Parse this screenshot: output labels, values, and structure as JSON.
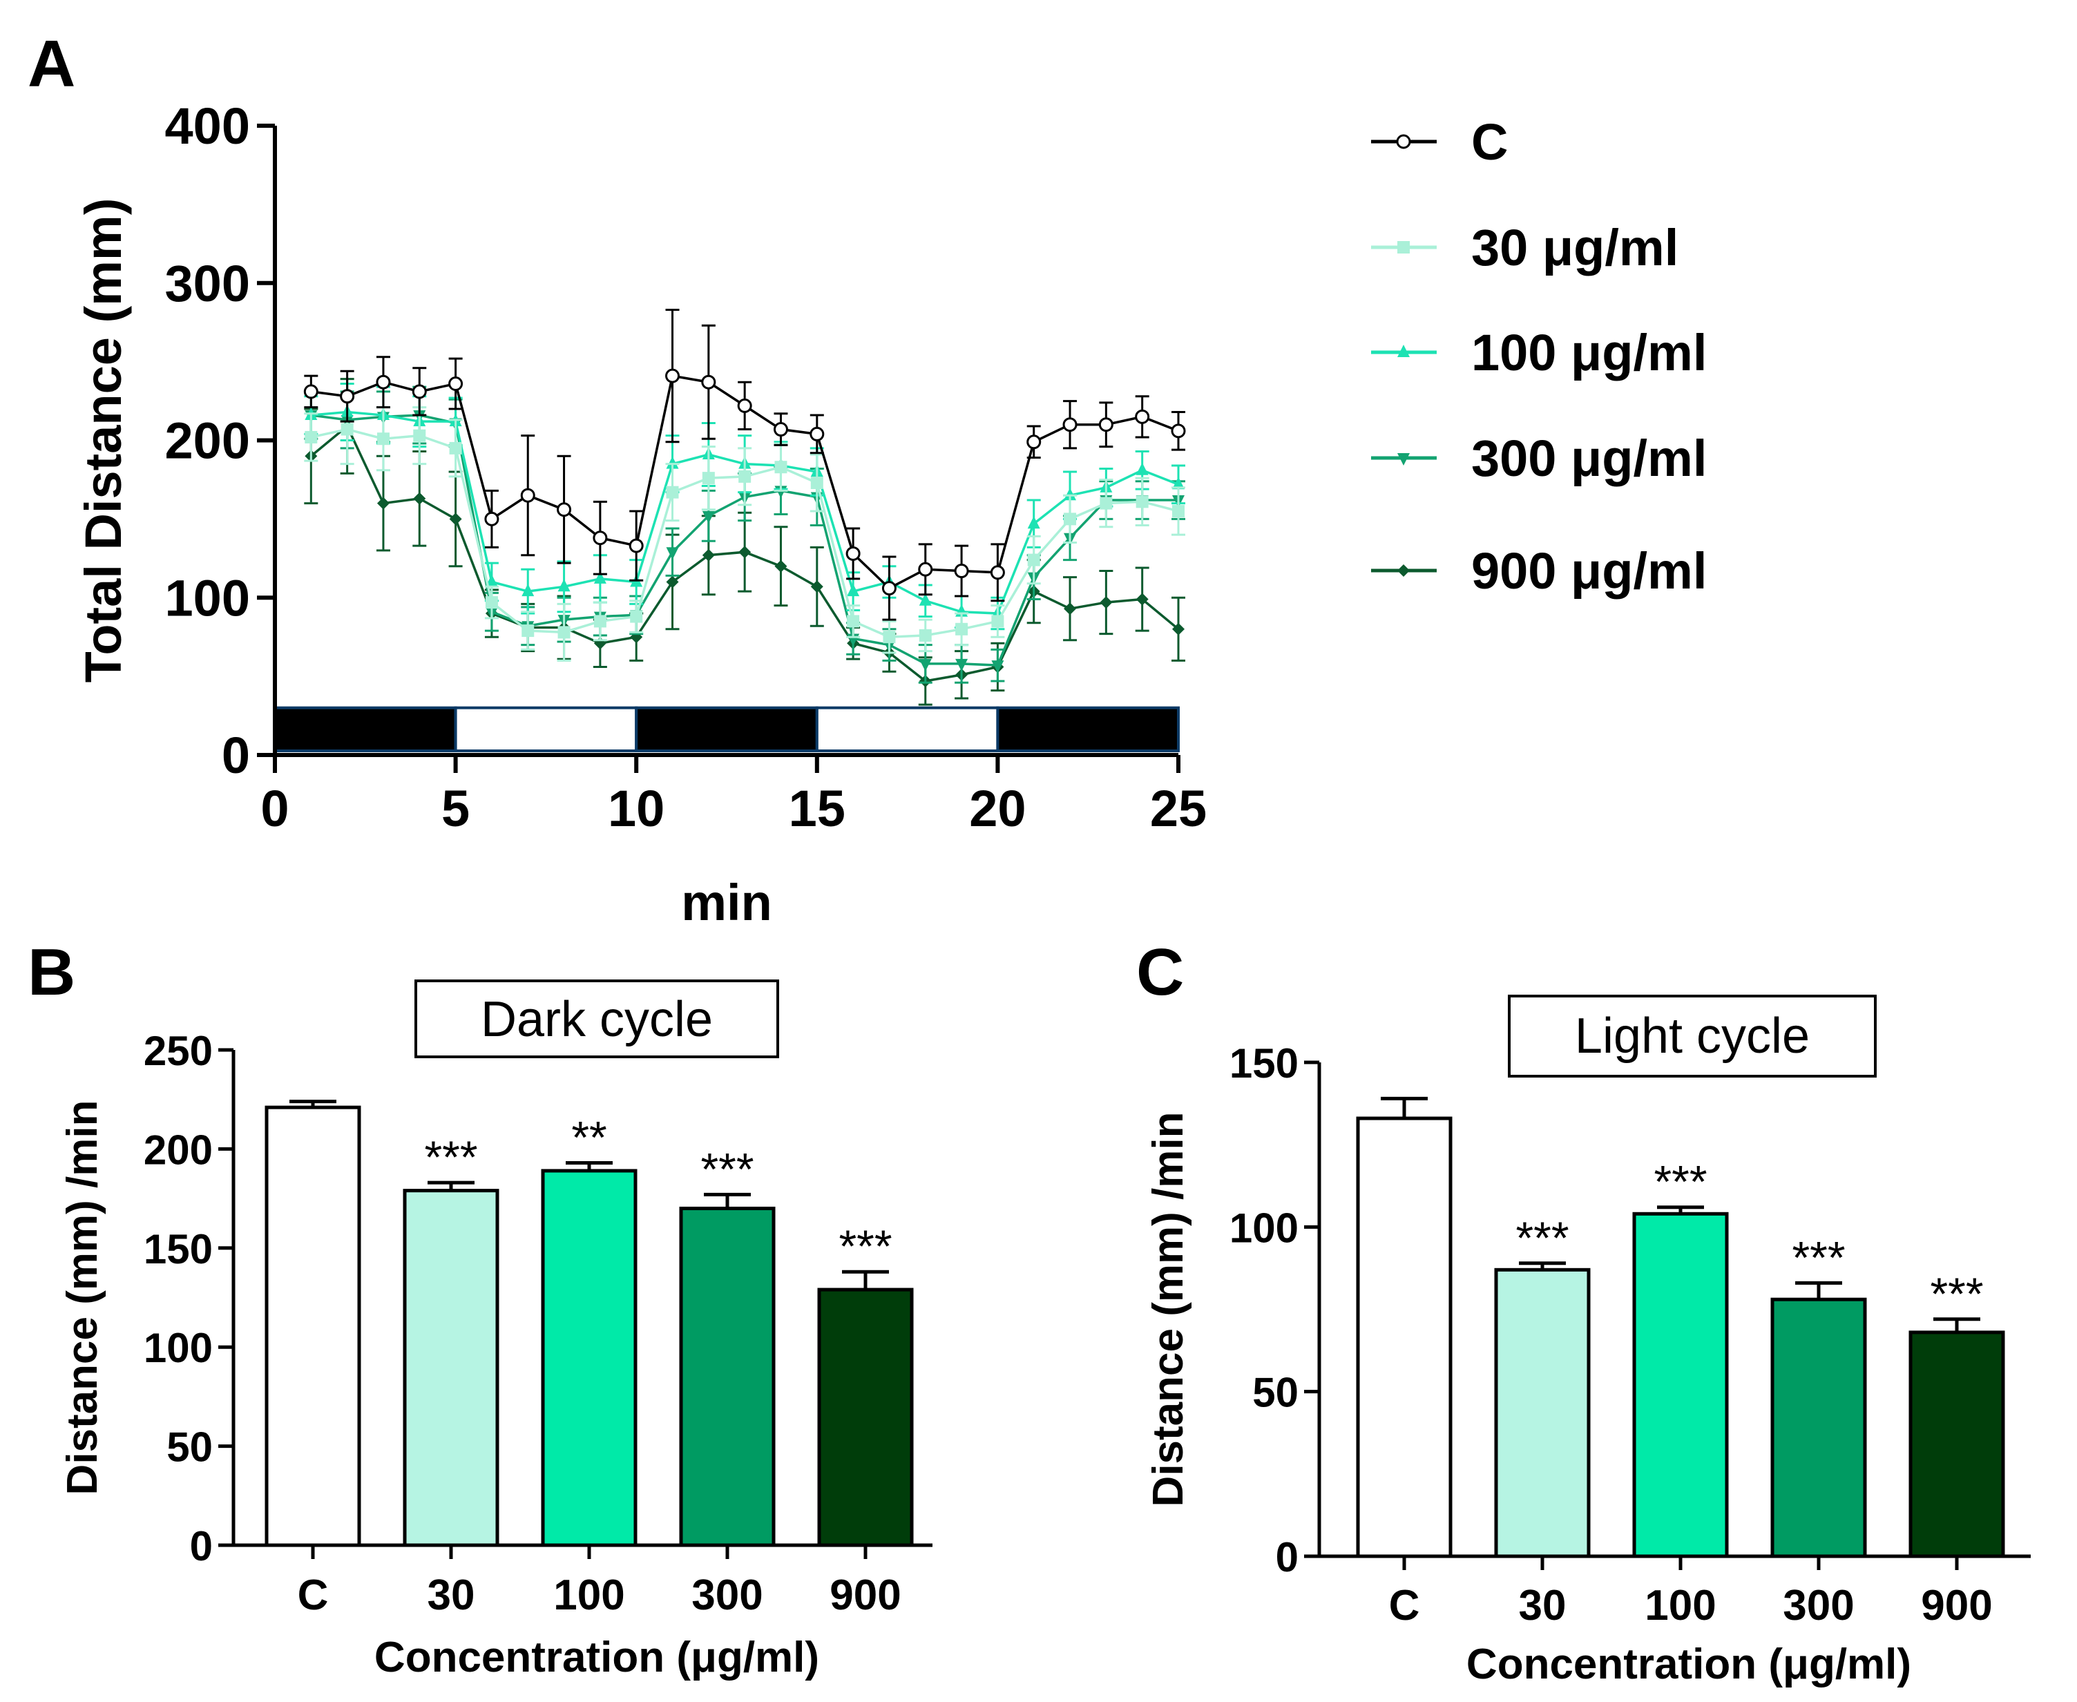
{
  "panels": {
    "a": "A",
    "b": "B",
    "c": "C"
  },
  "chart_data": [
    {
      "id": "A",
      "type": "line",
      "xlabel": "min",
      "ylabel": "Total Distance (mm)",
      "xlim": [
        0,
        25
      ],
      "ylim": [
        0,
        400
      ],
      "xticks": [
        "0",
        "5",
        "10",
        "15",
        "20",
        "25"
      ],
      "yticks": [
        "0",
        "100",
        "200",
        "300",
        "400"
      ],
      "light_dark_bar": [
        {
          "from": 0,
          "to": 5,
          "phase": "dark"
        },
        {
          "from": 5,
          "to": 10,
          "phase": "light"
        },
        {
          "from": 10,
          "to": 15,
          "phase": "dark"
        },
        {
          "from": 15,
          "to": 20,
          "phase": "light"
        },
        {
          "from": 20,
          "to": 25,
          "phase": "dark"
        }
      ],
      "x": [
        1,
        2,
        3,
        4,
        5,
        6,
        7,
        8,
        9,
        10,
        11,
        12,
        13,
        14,
        15,
        16,
        17,
        18,
        19,
        20,
        21,
        22,
        23,
        24,
        25
      ],
      "series": [
        {
          "name": "C",
          "color": "#000000",
          "marker": "circle-open",
          "values": [
            231,
            228,
            237,
            231,
            236,
            150,
            165,
            156,
            138,
            133,
            241,
            237,
            222,
            207,
            204,
            128,
            106,
            118,
            117,
            116,
            199,
            210,
            210,
            215,
            206
          ],
          "errors": [
            10,
            16,
            16,
            15,
            16,
            18,
            38,
            34,
            23,
            22,
            42,
            36,
            15,
            10,
            12,
            16,
            20,
            16,
            16,
            18,
            10,
            15,
            14,
            13,
            12
          ]
        },
        {
          "name": "30 μg/ml",
          "color": "#aaf0d8",
          "marker": "square",
          "values": [
            202,
            207,
            201,
            203,
            195,
            97,
            79,
            78,
            85,
            88,
            167,
            176,
            177,
            183,
            173,
            85,
            75,
            76,
            80,
            85,
            124,
            150,
            160,
            161,
            155
          ],
          "errors": [
            15,
            22,
            20,
            18,
            18,
            10,
            12,
            18,
            12,
            10,
            18,
            20,
            18,
            15,
            18,
            10,
            10,
            10,
            10,
            10,
            15,
            15,
            15,
            15,
            15
          ]
        },
        {
          "name": "100 μg/ml",
          "color": "#1de2b3",
          "marker": "triangle-up",
          "values": [
            216,
            218,
            216,
            212,
            212,
            110,
            104,
            107,
            112,
            110,
            185,
            191,
            185,
            184,
            180,
            104,
            110,
            98,
            91,
            90,
            147,
            165,
            170,
            181,
            172
          ],
          "errors": [
            12,
            18,
            18,
            16,
            15,
            12,
            14,
            16,
            15,
            14,
            18,
            20,
            18,
            15,
            15,
            12,
            10,
            10,
            10,
            10,
            15,
            15,
            12,
            12,
            12
          ]
        },
        {
          "name": "300 μg/ml",
          "color": "#13a371",
          "marker": "triangle-down",
          "values": [
            216,
            213,
            215,
            216,
            211,
            91,
            82,
            86,
            88,
            89,
            129,
            152,
            164,
            168,
            164,
            74,
            70,
            58,
            58,
            57,
            113,
            138,
            162,
            162,
            162
          ],
          "errors": [
            15,
            18,
            16,
            18,
            15,
            12,
            12,
            14,
            12,
            12,
            15,
            16,
            15,
            15,
            18,
            10,
            10,
            12,
            12,
            10,
            14,
            14,
            12,
            12,
            12
          ]
        },
        {
          "name": "900 μg/ml",
          "color": "#0c5a2e",
          "marker": "diamond",
          "values": [
            190,
            209,
            160,
            163,
            150,
            90,
            81,
            81,
            71,
            75,
            110,
            127,
            129,
            120,
            107,
            71,
            65,
            47,
            51,
            56,
            104,
            93,
            97,
            99,
            80
          ],
          "errors": [
            30,
            30,
            30,
            30,
            30,
            15,
            15,
            20,
            15,
            15,
            30,
            25,
            25,
            25,
            25,
            10,
            12,
            15,
            15,
            15,
            20,
            20,
            20,
            20,
            20
          ]
        }
      ]
    },
    {
      "id": "B",
      "type": "bar",
      "title": "Dark cycle",
      "xlabel": "Concentration (μg/ml)",
      "ylabel": "Distance (mm) /min",
      "ylim": [
        0,
        250
      ],
      "yticks": [
        "0",
        "50",
        "100",
        "150",
        "200",
        "250"
      ],
      "categories": [
        "C",
        "30",
        "100",
        "300",
        "900"
      ],
      "values": [
        221,
        179,
        189,
        170,
        129
      ],
      "errors": [
        3,
        4,
        4,
        7,
        9
      ],
      "significance": [
        "",
        "***",
        "**",
        "***",
        "***"
      ],
      "colors": [
        "#ffffff",
        "#b6f4e3",
        "#00eaa8",
        "#009b62",
        "#003d0a"
      ]
    },
    {
      "id": "C",
      "type": "bar",
      "title": "Light cycle",
      "xlabel": "Concentration (μg/ml)",
      "ylabel": "Distance (mm) /min",
      "ylim": [
        0,
        150
      ],
      "yticks": [
        "0",
        "50",
        "100",
        "150"
      ],
      "categories": [
        "C",
        "30",
        "100",
        "300",
        "900"
      ],
      "values": [
        133,
        87,
        104,
        78,
        68
      ],
      "errors": [
        6,
        2,
        2,
        5,
        4
      ],
      "significance": [
        "",
        "***",
        "***",
        "***",
        "***"
      ],
      "colors": [
        "#ffffff",
        "#b6f4e3",
        "#00eaa8",
        "#009b62",
        "#003d0a"
      ]
    }
  ]
}
